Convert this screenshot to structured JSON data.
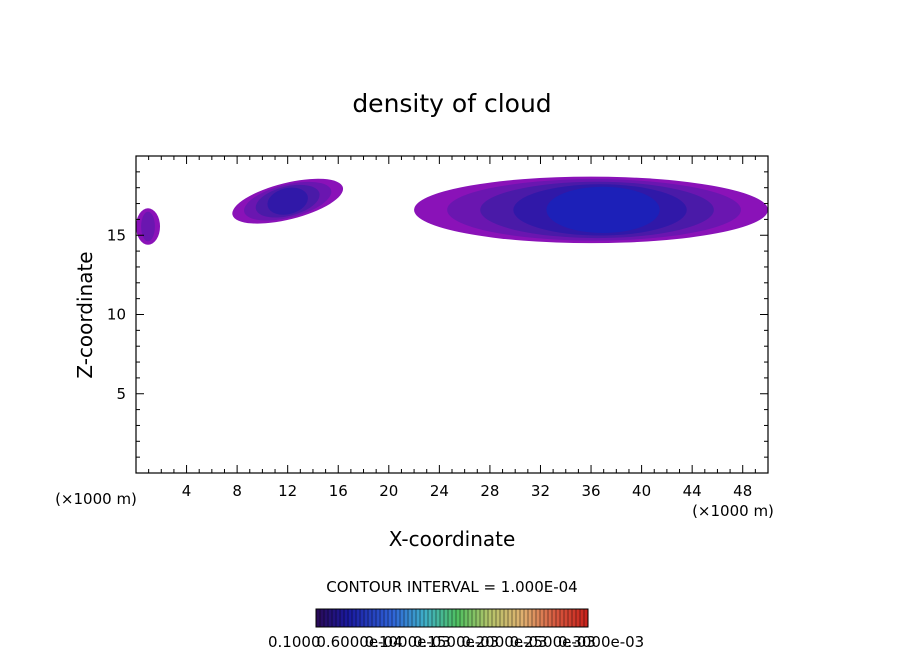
{
  "chart_data": {
    "type": "heatmap",
    "title": "density of cloud",
    "xlabel": "X-coordinate",
    "ylabel": "Z-coordinate",
    "x_unit_left": "(×1000 m)",
    "x_unit_right": "(×1000 m)",
    "xlim": [
      0,
      50
    ],
    "ylim": [
      0,
      20
    ],
    "x_ticks": [
      "4",
      "8",
      "12",
      "16",
      "20",
      "24",
      "28",
      "32",
      "36",
      "40",
      "44",
      "48"
    ],
    "x_tick_values": [
      4,
      8,
      12,
      16,
      20,
      24,
      28,
      32,
      36,
      40,
      44,
      48
    ],
    "y_ticks": [
      "5",
      "10",
      "15"
    ],
    "y_tick_values": [
      5,
      10,
      15
    ],
    "contour_interval_text": "CONTOUR INTERVAL = 1.000E-04",
    "colorbar_labels": [
      "0.1000",
      "0.6000e-04",
      "0.1000e-03",
      "0.1500e-03",
      "0.2000e-03",
      "0.2500e-03",
      "0.3000e-03"
    ],
    "regions": [
      {
        "name": "left edge cloud",
        "x_min": 0,
        "x_max": 1.9,
        "z_min": 14.4,
        "z_max": 16.7,
        "peak_level": 0.3
      },
      {
        "name": "small cloud",
        "x_min": 7.5,
        "x_max": 16.5,
        "z_min": 16.0,
        "z_max": 18.3,
        "peak_level": 0.6
      },
      {
        "name": "large cloud",
        "x_min": 22.0,
        "x_max": 50,
        "z_min": 14.5,
        "z_max": 18.7,
        "peak_level": 0.85
      }
    ]
  }
}
